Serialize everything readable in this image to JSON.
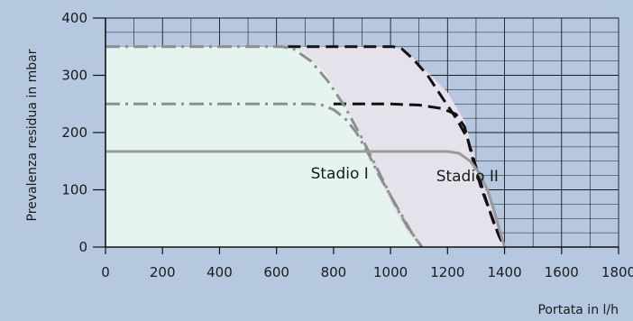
{
  "chart_data": {
    "type": "line",
    "xlabel": "Portata in l/h",
    "ylabel": "Prevalenza residua in mbar",
    "xlim": [
      0,
      1800
    ],
    "ylim": [
      0,
      400
    ],
    "x_ticks": [
      0,
      200,
      400,
      600,
      800,
      1000,
      1200,
      1400,
      1600,
      1800
    ],
    "y_ticks": [
      0,
      100,
      200,
      300,
      400
    ],
    "grid": true,
    "background_color": "#b6c8df",
    "regions": [
      {
        "name": "Stadio I",
        "label": "Stadio I",
        "color": "#e6f4ef",
        "label_at": [
          720,
          120
        ],
        "points": [
          [
            0,
            0
          ],
          [
            0,
            350
          ],
          [
            640,
            350
          ],
          [
            700,
            340
          ],
          [
            780,
            300
          ],
          [
            860,
            230
          ],
          [
            940,
            140
          ],
          [
            1020,
            60
          ],
          [
            1060,
            25
          ],
          [
            1110,
            0
          ]
        ]
      },
      {
        "name": "Stadio II",
        "label": "Stadio II",
        "color": "#e6e2ec",
        "label_at": [
          1160,
          115
        ],
        "points": [
          [
            640,
            350
          ],
          [
            1010,
            350
          ],
          [
            1060,
            340
          ],
          [
            1120,
            310
          ],
          [
            1200,
            270
          ],
          [
            1260,
            220
          ],
          [
            1300,
            150
          ],
          [
            1340,
            90
          ],
          [
            1370,
            40
          ],
          [
            1400,
            0
          ],
          [
            1110,
            0
          ],
          [
            1060,
            25
          ],
          [
            1020,
            60
          ],
          [
            940,
            140
          ],
          [
            860,
            230
          ],
          [
            780,
            300
          ],
          [
            700,
            340
          ]
        ]
      }
    ],
    "series": [
      {
        "style": "dash",
        "color": "#111111",
        "points": [
          [
            640,
            350
          ],
          [
            1010,
            350
          ],
          [
            1040,
            346
          ],
          [
            1080,
            328
          ],
          [
            1130,
            300
          ],
          [
            1180,
            262
          ],
          [
            1230,
            225
          ],
          [
            1270,
            190
          ],
          [
            1300,
            140
          ],
          [
            1330,
            90
          ],
          [
            1360,
            45
          ],
          [
            1385,
            15
          ],
          [
            1400,
            0
          ]
        ]
      },
      {
        "style": "dash",
        "color": "#111111",
        "points": [
          [
            800,
            250
          ],
          [
            1000,
            250
          ],
          [
            1100,
            248
          ],
          [
            1180,
            242
          ],
          [
            1230,
            232
          ],
          [
            1260,
            210
          ],
          [
            1290,
            150
          ],
          [
            1320,
            100
          ],
          [
            1350,
            60
          ],
          [
            1380,
            20
          ],
          [
            1400,
            0
          ]
        ]
      },
      {
        "style": "dashdot",
        "color": "#8e8e8e",
        "points": [
          [
            0,
            350
          ],
          [
            620,
            350
          ],
          [
            660,
            346
          ],
          [
            720,
            325
          ],
          [
            780,
            290
          ],
          [
            840,
            245
          ],
          [
            900,
            190
          ],
          [
            960,
            130
          ],
          [
            1020,
            70
          ],
          [
            1060,
            35
          ],
          [
            1110,
            0
          ]
        ]
      },
      {
        "style": "dashdot",
        "color": "#8e8e8e",
        "points": [
          [
            0,
            250
          ],
          [
            720,
            250
          ],
          [
            760,
            248
          ],
          [
            800,
            240
          ],
          [
            840,
            225
          ],
          [
            880,
            200
          ],
          [
            920,
            165
          ],
          [
            960,
            125
          ],
          [
            1000,
            90
          ],
          [
            1040,
            55
          ],
          [
            1080,
            20
          ],
          [
            1110,
            0
          ]
        ]
      },
      {
        "style": "solid",
        "color": "#9a9a9a",
        "points": [
          [
            0,
            167
          ],
          [
            1200,
            167
          ],
          [
            1240,
            164
          ],
          [
            1280,
            150
          ],
          [
            1310,
            130
          ],
          [
            1340,
            100
          ],
          [
            1360,
            70
          ],
          [
            1380,
            35
          ],
          [
            1400,
            0
          ]
        ]
      }
    ]
  }
}
